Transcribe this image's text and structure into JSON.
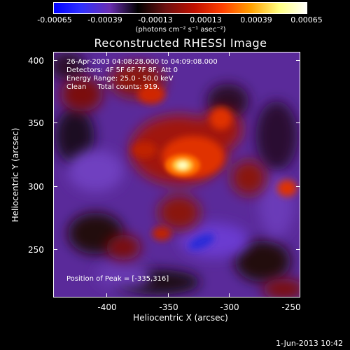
{
  "colorbar": {
    "colors": [
      "#0000ff",
      "#3030ff",
      "#6a2eb2",
      "#000000",
      "#6e1010",
      "#c01000",
      "#ff4000",
      "#ffa000",
      "#ffff80",
      "#ffffff"
    ],
    "tick_labels": [
      "-0.00065",
      "-0.00039",
      "-0.00013",
      "0.00013",
      "0.00039",
      "0.00065"
    ],
    "units_label": "(photons cm⁻² s⁻¹ asec⁻²)"
  },
  "plot": {
    "title": "Reconstructed RHESSI Image",
    "info_lines": [
      "26-Apr-2003 04:08:28.000 to 04:09:08.000",
      "Detectors: 4F 5F 6F 7F 8F, Att 0",
      "Energy Range: 25.0 - 50.0 keV",
      "Clean     Total counts: 919."
    ],
    "peak_text": "Position of Peak = [-335,316]",
    "x_axis": {
      "title": "Heliocentric X (arcsec)",
      "tick_labels": [
        "-400",
        "-350",
        "-300",
        "-250"
      ],
      "range": [
        -443,
        -250
      ]
    },
    "y_axis": {
      "title": "Heliocentric Y (arcsec)",
      "tick_labels": [
        "250",
        "300",
        "350",
        "400"
      ],
      "range": [
        210,
        406
      ]
    }
  },
  "footer": {
    "date": "1-Jun-2013 10:42"
  }
}
